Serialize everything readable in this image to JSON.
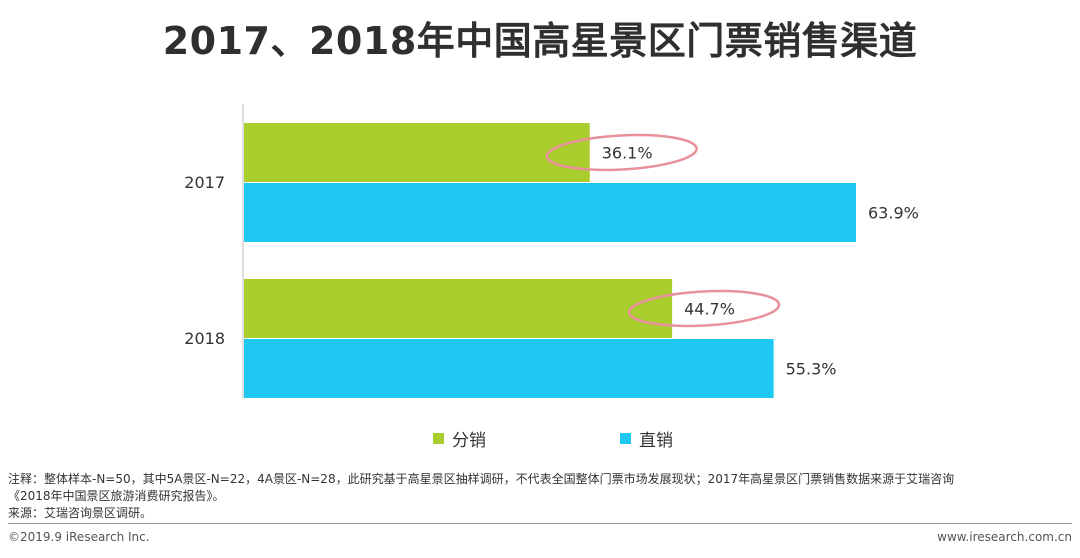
{
  "header": {
    "title": "2017、2018年中国高星景区门票销售渠道"
  },
  "chart_data": {
    "type": "bar",
    "orientation": "horizontal",
    "categories": [
      "2017",
      "2018"
    ],
    "series": [
      {
        "name": "分销",
        "color": "#a9cd2c",
        "values": [
          36.1,
          44.7
        ],
        "labels": [
          "36.1%",
          "44.7%"
        ]
      },
      {
        "name": "直销",
        "color": "#1ec8f0",
        "values": [
          63.9,
          55.3
        ],
        "labels": [
          "63.9%",
          "55.3%"
        ]
      }
    ],
    "xlim": [
      0,
      70
    ],
    "grid": false,
    "legend_position": "bottom",
    "highlighted_labels": [
      "36.1%",
      "44.7%"
    ],
    "highlight_color": "#e8909c"
  },
  "notes": {
    "line1": "注释：整体样本-N=50，其中5A景区-N=22，4A景区-N=28，此研究基于高星景区抽样调研，不代表全国整体门票市场发展现状；2017年高星景区门票销售数据来源于艾瑞咨询",
    "line2": "《2018年中国景区旅游消费研究报告》。",
    "line3": "来源：艾瑞咨询景区调研。"
  },
  "footer": {
    "copyright": "©2019.9 iResearch Inc.",
    "website": "www.iresearch.com.cn"
  }
}
